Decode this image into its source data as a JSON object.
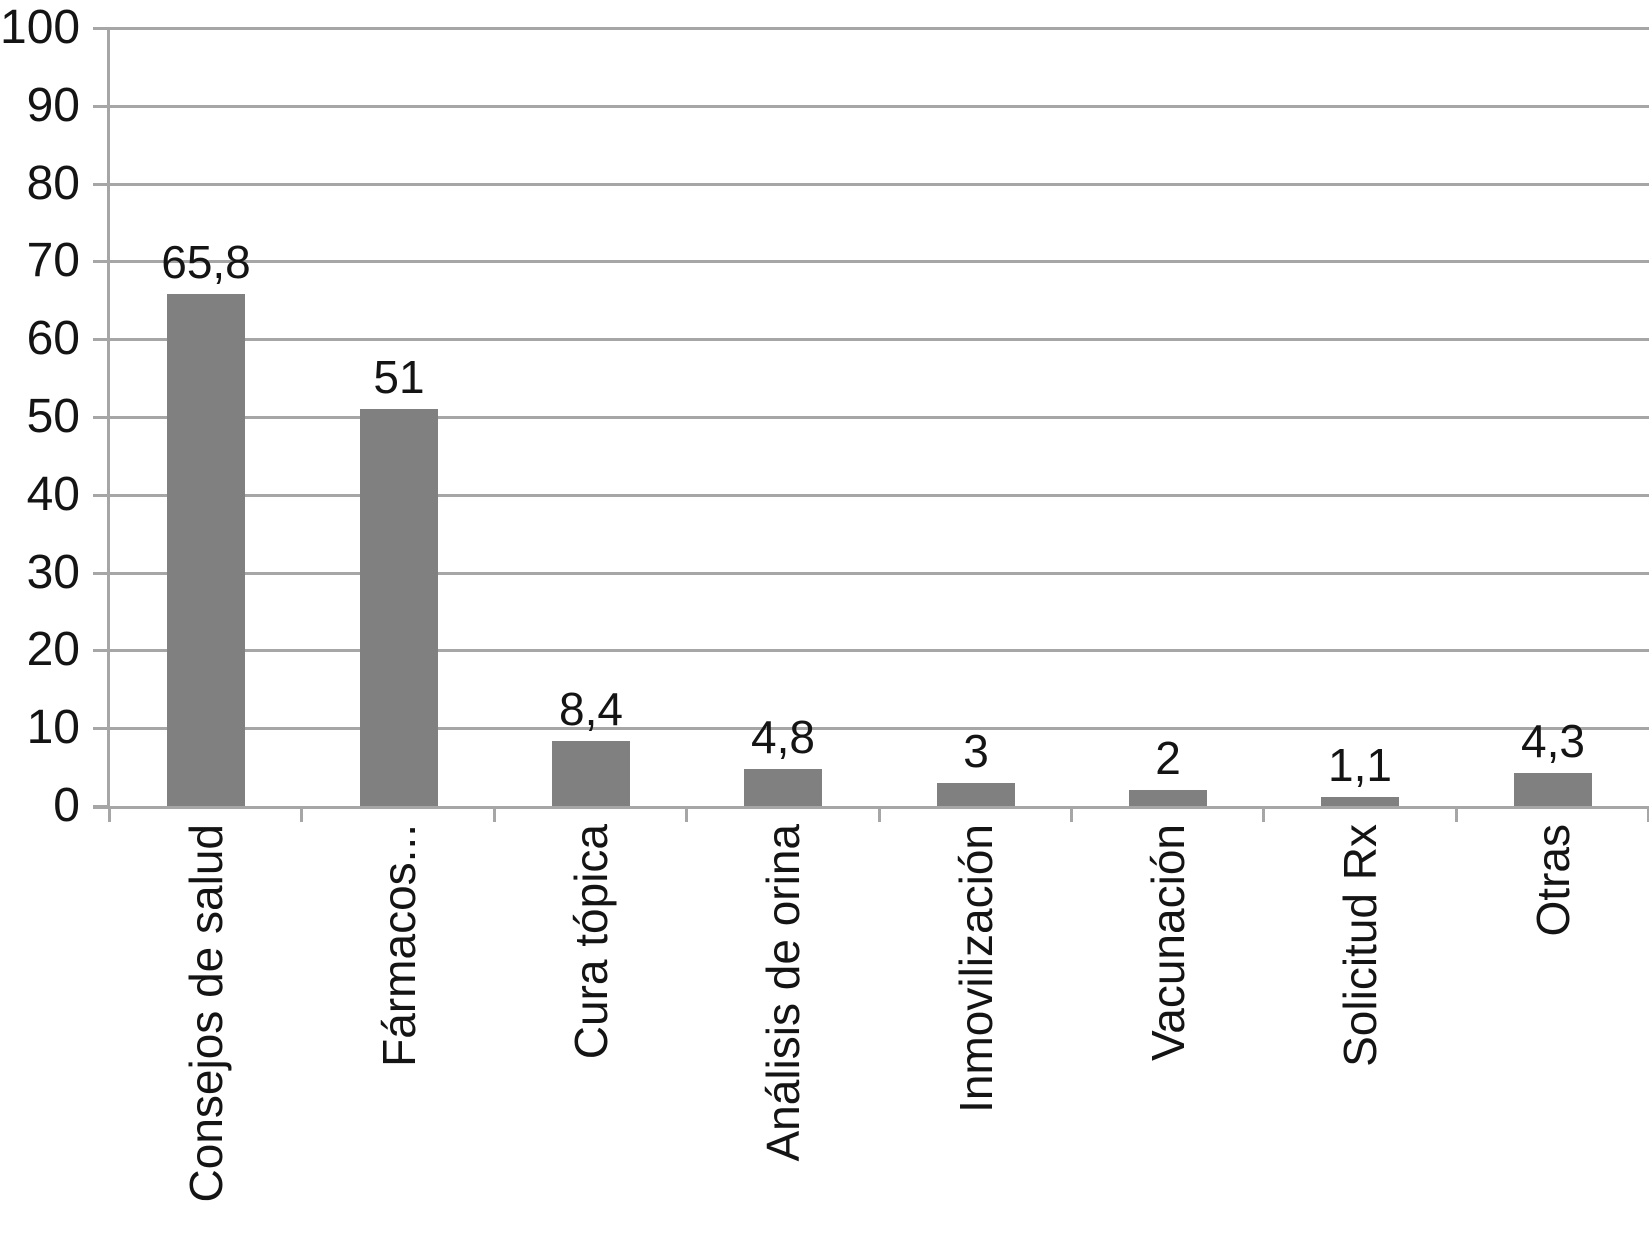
{
  "chart_data": {
    "type": "bar",
    "categories": [
      "Consejos de salud",
      "Fármacos...",
      "Cura tópica",
      "Análisis de orina",
      "Inmovilización",
      "Vacunación",
      "Solicitud Rx",
      "Otras"
    ],
    "values": [
      65.8,
      51,
      8.4,
      4.8,
      3,
      2,
      1.1,
      4.3
    ],
    "value_labels": [
      "65,8",
      "51",
      "8,4",
      "4,8",
      "3",
      "2",
      "1,1",
      "4,3"
    ],
    "title": "",
    "xlabel": "",
    "ylabel": "",
    "ylim": [
      0,
      100
    ],
    "ytick_step": 10,
    "ytick_labels": [
      "100",
      "90",
      "80",
      "70",
      "60",
      "50",
      "40",
      "30",
      "20",
      "10",
      "0"
    ],
    "grid": true,
    "legend": false,
    "label_rotation_deg": -90,
    "colors": {
      "bar": "#808080",
      "grid": "#a6a6a6",
      "axis": "#a6a6a6",
      "text": "#141414",
      "background": "#ffffff"
    }
  }
}
